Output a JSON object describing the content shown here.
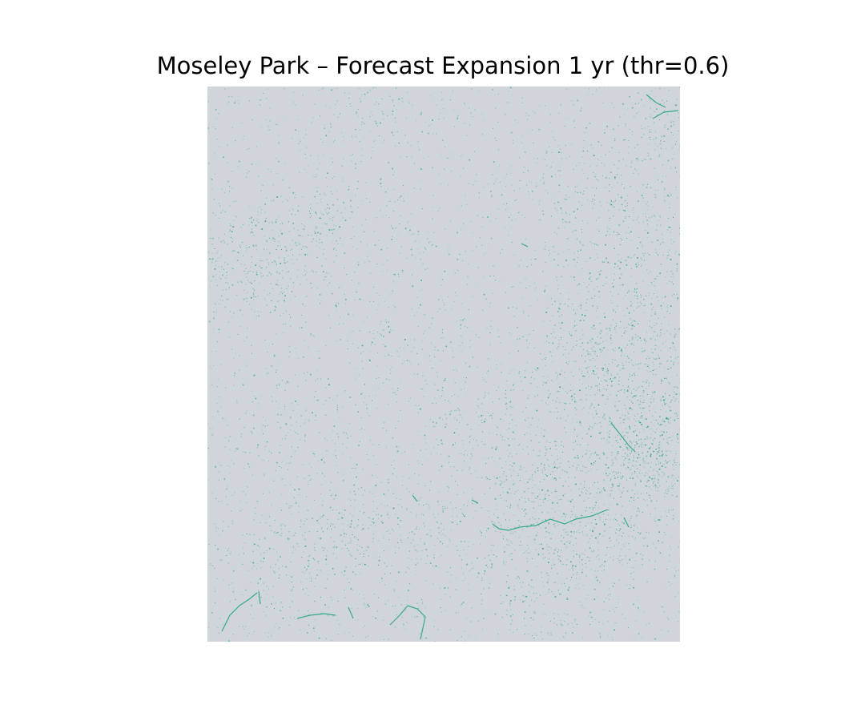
{
  "figure": {
    "title": "Moseley Park – Forecast Expansion 1 yr (thr=0.6)"
  },
  "map": {
    "background_color": "#d0d4db",
    "expansion_color": "#1aa37f",
    "expansion_threshold": 0.6,
    "forecast_horizon": "1 yr",
    "axes_visible": false
  }
}
